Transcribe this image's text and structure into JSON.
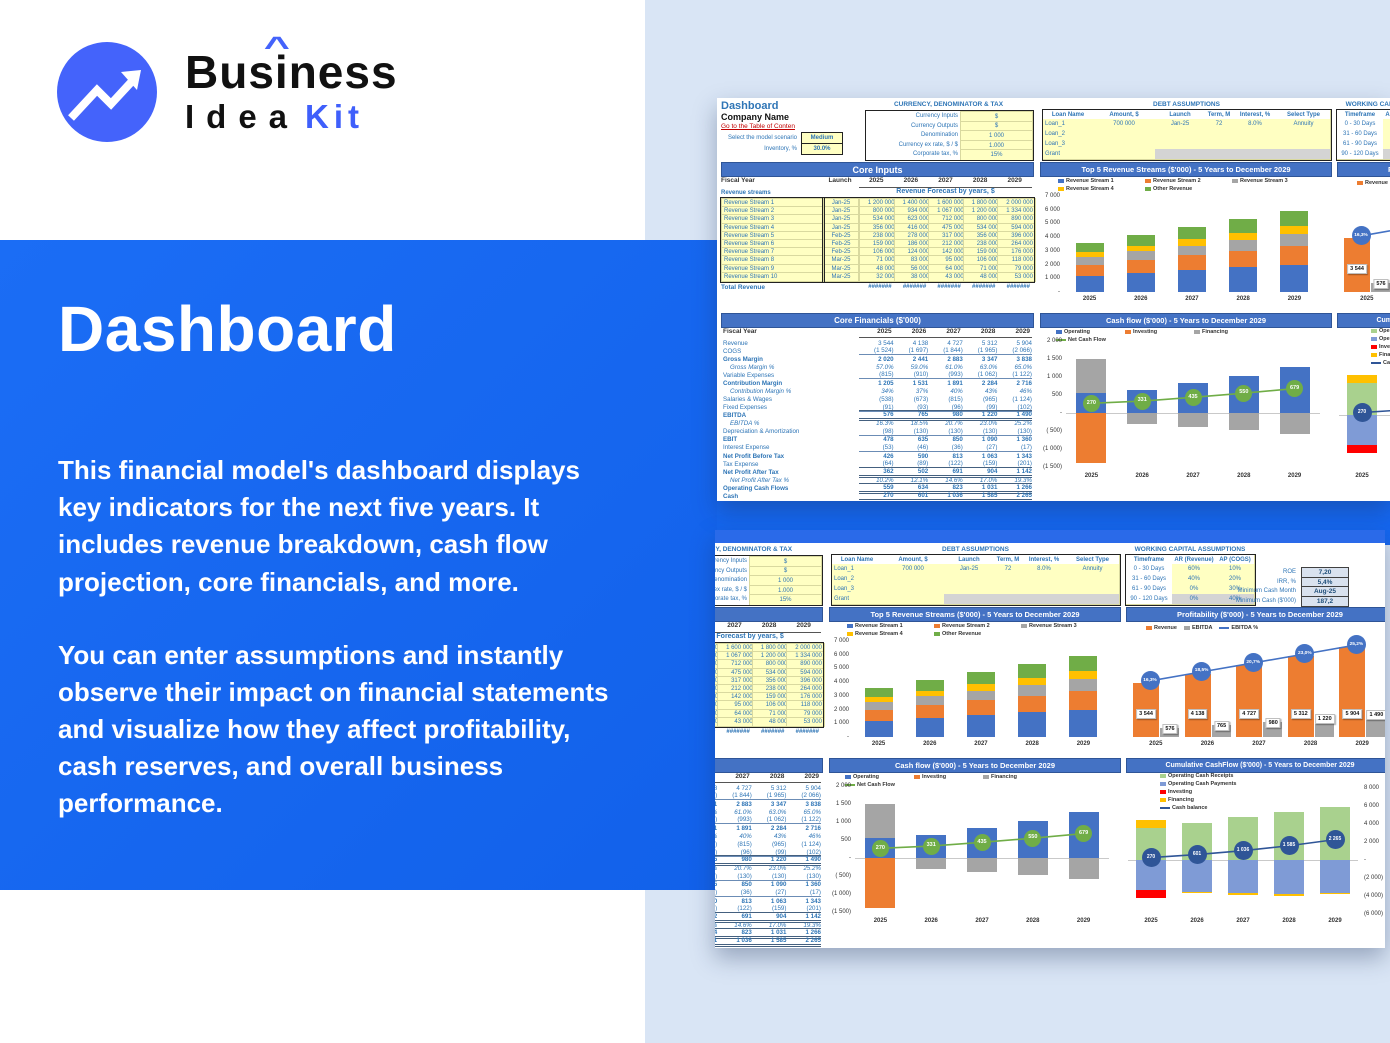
{
  "brand": {
    "line1_pre": "Bus",
    "line1_i": "i",
    "line1_post": "ness",
    "caret": "^",
    "line2_black": "Idea",
    "line2_blue": "Kit"
  },
  "hero": {
    "title": "Dashboard",
    "p1": "This financial model's dashboard displays key indicators for the next five years. It includes revenue breakdown, cash flow projection, core financials, and more.",
    "p2": "You can enter assumptions and instantly observe their impact on financial statements and visualize how they affect profitability, cash reserves, and overall business performance."
  },
  "colors": {
    "accent_blue": "#1567f0",
    "light_blue": "#d9e5f5",
    "logo_blue": "#4463fb",
    "excel_banner": "#4472c4",
    "sheet_blue": "#2e75b6",
    "link_red": "#c00000",
    "input_yellow": "#ffffc2",
    "bar_blue": "#4472c4",
    "bar_orange": "#ed7d31",
    "bar_grey": "#a5a5a5",
    "bar_yellow": "#ffc000",
    "bar_green": "#70ad47",
    "bar_lightgreen": "#a9d18e",
    "bar_lightblue": "#7f9bd6",
    "bar_red": "#ff0000",
    "circle_navy": "#2f5597"
  },
  "sheet": {
    "title": "Dashboard",
    "company": "Company Name",
    "toc_link": "Go to the Table of Conten",
    "scenario_label": "Select the model scenario",
    "scenario_value": "Medium",
    "inventory_label": "Inventory, %",
    "inventory_value": "30.0%",
    "currency_box": {
      "title": "CURRENCY, DENOMINATOR & TAX",
      "rows": [
        [
          "Currency Inputs",
          "$"
        ],
        [
          "Currency Outputs",
          "$"
        ],
        [
          "Denomination",
          "1 000"
        ],
        [
          "Currency ex rate, $ / $",
          "1.000"
        ],
        [
          "Corporate tax, %",
          "15%"
        ]
      ]
    },
    "debt_box": {
      "title": "DEBT ASSUMPTIONS",
      "headers": [
        "Loan Name",
        "Amount, $",
        "Launch",
        "Term, M",
        "Interest, %",
        "Select Type"
      ],
      "rows": [
        [
          "Loan_1",
          "700 000",
          "Jan-25",
          "72",
          "8.0%",
          "Annuity"
        ],
        [
          "Loan_2",
          "",
          "",
          "",
          "",
          ""
        ],
        [
          "Loan_3",
          "",
          "",
          "",
          "",
          ""
        ],
        [
          "Grant",
          "",
          "",
          "",
          "",
          ""
        ]
      ]
    },
    "wc_box": {
      "title": "WORKING CAPITAL ASSUMPTIONS",
      "headers": [
        "Timeframe",
        "AR (Revenue)",
        "AP (COGS)"
      ],
      "rows": [
        [
          "0 - 30 Days",
          "60%",
          "10%"
        ],
        [
          "31 - 60 Days",
          "40%",
          "20%"
        ],
        [
          "61 - 90 Days",
          "0%",
          "30%"
        ],
        [
          "90 - 120 Days",
          "0%",
          "40%"
        ]
      ]
    },
    "kpis": [
      [
        "ROE",
        "7,20"
      ],
      [
        "IRR, %",
        "5,4%"
      ],
      [
        "Minimum Cash Month",
        "Aug-25"
      ],
      [
        "Minimum Cash ($'000)",
        "187,2"
      ]
    ],
    "banners": {
      "core_inputs": "Core Inputs",
      "top5": "Top 5 Revenue Streams ($'000) - 5 Years to December 2029",
      "profitability": "Profitability ($'000) - 5 Years to December 2029",
      "core_financials": "Core Financials ($'000)",
      "cashflow": "Cash flow ($'000) - 5 Years to December 2029",
      "cumulative": "Cumulative CashFlow ($'000) - 5 Years to December 2029"
    },
    "core_inputs": {
      "fiscal_year_label": "Fiscal Year",
      "launch_label": "Launch",
      "years": [
        "2025",
        "2026",
        "2027",
        "2028",
        "2029"
      ],
      "revenue_streams_label": "Revenue streams",
      "forecast_label": "Revenue Forecast by years, $",
      "streams": [
        [
          "Revenue Stream 1",
          "Jan-25",
          [
            "1 200 000",
            "1 400 000",
            "1 600 000",
            "1 800 000",
            "2 000 000"
          ]
        ],
        [
          "Revenue Stream 2",
          "Jan-25",
          [
            "800 000",
            "934 000",
            "1 067 000",
            "1 200 000",
            "1 334 000"
          ]
        ],
        [
          "Revenue Stream 3",
          "Jan-25",
          [
            "534 000",
            "623 000",
            "712 000",
            "800 000",
            "890 000"
          ]
        ],
        [
          "Revenue Stream 4",
          "Jan-25",
          [
            "356 000",
            "416 000",
            "475 000",
            "534 000",
            "594 000"
          ]
        ],
        [
          "Revenue Stream 5",
          "Feb-25",
          [
            "238 000",
            "278 000",
            "317 000",
            "356 000",
            "396 000"
          ]
        ],
        [
          "Revenue Stream 6",
          "Feb-25",
          [
            "159 000",
            "186 000",
            "212 000",
            "238 000",
            "264 000"
          ]
        ],
        [
          "Revenue Stream 7",
          "Feb-25",
          [
            "106 000",
            "124 000",
            "142 000",
            "159 000",
            "176 000"
          ]
        ],
        [
          "Revenue Stream 8",
          "Mar-25",
          [
            "71 000",
            "83 000",
            "95 000",
            "106 000",
            "118 000"
          ]
        ],
        [
          "Revenue Stream 9",
          "Mar-25",
          [
            "48 000",
            "56 000",
            "64 000",
            "71 000",
            "79 000"
          ]
        ],
        [
          "Revenue Stream 10",
          "Mar-25",
          [
            "32 000",
            "38 000",
            "43 000",
            "48 000",
            "53 000"
          ]
        ]
      ],
      "total_label": "Total Revenue",
      "total_values": [
        "#######",
        "#######",
        "#######",
        "#######",
        "#######"
      ]
    },
    "core_financials": {
      "fiscal_year_label": "Fiscal Year",
      "years": [
        "2025",
        "2026",
        "2027",
        "2028",
        "2029"
      ],
      "rows": [
        [
          "Revenue",
          "p",
          [
            "3 544",
            "4 138",
            "4 727",
            "5 312",
            "5 904"
          ]
        ],
        [
          "COGS",
          "u",
          [
            "(1 524)",
            "(1 697)",
            "(1 844)",
            "(1 965)",
            "(2 066)"
          ]
        ],
        [
          "Gross Margin",
          "b",
          [
            "2 020",
            "2 441",
            "2 883",
            "3 347",
            "3 838"
          ]
        ],
        [
          "Gross Margin %",
          "pct",
          [
            "57.0%",
            "59.0%",
            "61.0%",
            "63.0%",
            "65.0%"
          ]
        ],
        [
          "Variable Expenses",
          "u",
          [
            "(815)",
            "(910)",
            "(993)",
            "(1 062)",
            "(1 122)"
          ]
        ],
        [
          "Contribution Margin",
          "b",
          [
            "1 205",
            "1 531",
            "1 891",
            "2 284",
            "2 716"
          ]
        ],
        [
          "Contribution Margin %",
          "pct",
          [
            "34%",
            "37%",
            "40%",
            "43%",
            "46%"
          ]
        ],
        [
          "Salaries & Wages",
          "p",
          [
            "(538)",
            "(673)",
            "(815)",
            "(965)",
            "(1 124)"
          ]
        ],
        [
          "Fixed Expenses",
          "u",
          [
            "(91)",
            "(93)",
            "(96)",
            "(99)",
            "(102)"
          ]
        ],
        [
          "EBITDA",
          "d",
          [
            "576",
            "765",
            "980",
            "1 220",
            "1 490"
          ]
        ],
        [
          "EBITDA %",
          "pct",
          [
            "16.3%",
            "18.5%",
            "20.7%",
            "23.0%",
            "25.2%"
          ]
        ],
        [
          "Depreciation & Amortization",
          "u",
          [
            "(98)",
            "(130)",
            "(130)",
            "(130)",
            "(130)"
          ]
        ],
        [
          "EBIT",
          "b",
          [
            "478",
            "635",
            "850",
            "1 090",
            "1 360"
          ]
        ],
        [
          "Interest Expense",
          "u",
          [
            "(53)",
            "(46)",
            "(36)",
            "(27)",
            "(17)"
          ]
        ],
        [
          "Net Profit Before Tax",
          "b",
          [
            "426",
            "590",
            "813",
            "1 063",
            "1 343"
          ]
        ],
        [
          "Tax Expense",
          "u",
          [
            "(64)",
            "(89)",
            "(122)",
            "(159)",
            "(201)"
          ]
        ],
        [
          "Net Profit After Tax",
          "d",
          [
            "362",
            "502",
            "691",
            "904",
            "1 142"
          ]
        ],
        [
          "Net Profit After Tax %",
          "pct",
          [
            "10.2%",
            "12.1%",
            "14.6%",
            "17.0%",
            "19.3%"
          ]
        ],
        [
          "Operating Cash Flows",
          "d",
          [
            "559",
            "634",
            "823",
            "1 031",
            "1 266"
          ]
        ],
        [
          "Cash",
          "d",
          [
            "270",
            "601",
            "1 036",
            "1 585",
            "2 265"
          ]
        ]
      ]
    }
  },
  "chart_data": [
    {
      "id": "top5",
      "type": "bar",
      "title": "Top 5 Revenue Streams ($'000) - 5 Years to December 2029",
      "categories": [
        "2025",
        "2026",
        "2027",
        "2028",
        "2029"
      ],
      "series": [
        {
          "name": "Revenue Stream 1",
          "color": "#4472c4",
          "values": [
            1200,
            1400,
            1600,
            1800,
            2000
          ]
        },
        {
          "name": "Revenue Stream 2",
          "color": "#ed7d31",
          "values": [
            800,
            934,
            1067,
            1200,
            1334
          ]
        },
        {
          "name": "Revenue Stream 3",
          "color": "#a5a5a5",
          "values": [
            534,
            623,
            712,
            800,
            890
          ]
        },
        {
          "name": "Revenue Stream 4",
          "color": "#ffc000",
          "values": [
            356,
            416,
            475,
            534,
            594
          ]
        },
        {
          "name": "Other Revenue",
          "color": "#70ad47",
          "values": [
            654,
            765,
            873,
            978,
            1086
          ]
        }
      ],
      "stacked": true,
      "ylim": [
        0,
        7000
      ],
      "yticks": [
        "7 000",
        "6 000",
        "5 000",
        "4 000",
        "3 000",
        "2 000",
        "1 000",
        "-"
      ],
      "legend_position": "top",
      "grid": false
    },
    {
      "id": "profitability",
      "type": "bar",
      "title": "Profitability ($'000) - 5 Years to December 2029",
      "categories": [
        "2025",
        "2026",
        "2027",
        "2028",
        "2029"
      ],
      "series": [
        {
          "name": "Revenue",
          "color": "#ed7d31",
          "values": [
            3544,
            4138,
            4727,
            5312,
            5904
          ],
          "labels": [
            "3 544",
            "4 138",
            "4 727",
            "5 312",
            "5 904"
          ]
        },
        {
          "name": "EBITDA",
          "color": "#a5a5a5",
          "values": [
            576,
            765,
            980,
            1220,
            1490
          ],
          "labels": [
            "576",
            "765",
            "980",
            "1 220",
            "1 490"
          ]
        },
        {
          "name": "EBITDA %",
          "type": "line",
          "color": "#4472c4",
          "values": [
            16.3,
            18.5,
            20.7,
            23.0,
            25.2
          ],
          "labels": [
            "16,3%",
            "18,5%",
            "20,7%",
            "23,0%",
            "25,2%"
          ]
        }
      ],
      "legend_position": "top",
      "grid": false
    },
    {
      "id": "cashflow",
      "type": "bar",
      "title": "Cash flow ($'000) - 5 Years to December 2029",
      "categories": [
        "2025",
        "2026",
        "2027",
        "2028",
        "2029"
      ],
      "series": [
        {
          "name": "Operating",
          "color": "#4472c4",
          "values": [
            559,
            634,
            823,
            1031,
            1266
          ]
        },
        {
          "name": "Investing",
          "color": "#ed7d31",
          "values": [
            -1400,
            0,
            0,
            0,
            0
          ]
        },
        {
          "name": "Financing",
          "color": "#a5a5a5",
          "values": [
            950,
            -303,
            -388,
            -481,
            -587
          ]
        },
        {
          "name": "Net Cash Flow",
          "type": "line",
          "color": "#70ad47",
          "values": [
            270,
            331,
            435,
            550,
            679
          ],
          "labels": [
            "270",
            "331",
            "435",
            "550",
            "679"
          ]
        }
      ],
      "ylim": [
        -1500,
        2000
      ],
      "yticks": [
        "2 000",
        "1 500",
        "1 000",
        "500",
        "-",
        "( 500)",
        "(1 000)",
        "(1 500)"
      ],
      "legend_position": "top",
      "grid": false
    },
    {
      "id": "cumulative",
      "type": "bar",
      "title": "Cumulative CashFlow ($'000) - 5 Years to December 2029",
      "categories": [
        "2025",
        "2026",
        "2027",
        "2028",
        "2029"
      ],
      "series": [
        {
          "name": "Operating Cash Receipts",
          "color": "#a9d18e",
          "values": [
            3544,
            4138,
            4727,
            5312,
            5904
          ]
        },
        {
          "name": "Operating Cash Payments",
          "color": "#7f9bd6",
          "values": [
            -3300,
            -3500,
            -3700,
            -3800,
            -3640
          ]
        },
        {
          "name": "Investing",
          "color": "#ff0000",
          "values": [
            -900,
            0,
            0,
            0,
            0
          ]
        },
        {
          "name": "Financing",
          "color": "#ffc000",
          "values": [
            900,
            -150,
            -150,
            -150,
            -150
          ]
        },
        {
          "name": "Cash balance",
          "type": "line",
          "color": "#2f5597",
          "values": [
            270,
            601,
            1036,
            1585,
            2265
          ],
          "labels": [
            "270",
            "601",
            "1 036",
            "1 585",
            "2 265"
          ]
        }
      ],
      "ylim": [
        -6000,
        8000
      ],
      "yticks": [
        "8 000",
        "6 000",
        "4 000",
        "2 000",
        "-",
        "(2 000)",
        "(4 000)",
        "(6 000)"
      ],
      "legend_position": "top",
      "grid": false
    }
  ]
}
